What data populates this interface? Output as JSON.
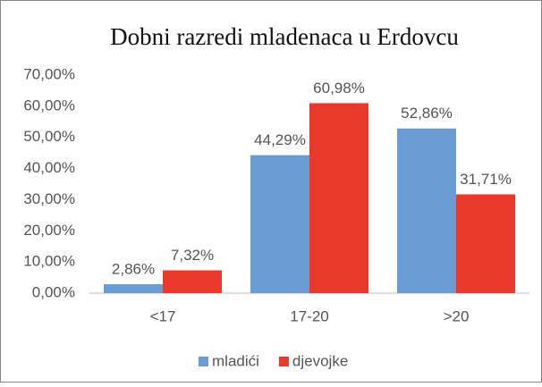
{
  "chart_data": {
    "type": "bar",
    "title": "Dobni razredi mladenaca u Erdovcu",
    "categories": [
      "<17",
      "17-20",
      ">20"
    ],
    "series": [
      {
        "name": "mladići",
        "color": "#6a9bd2",
        "values": [
          2.86,
          44.29,
          52.86
        ],
        "value_labels": [
          "2,86%",
          "44,29%",
          "52,86%"
        ]
      },
      {
        "name": "djevojke",
        "color": "#e8392a",
        "values": [
          7.32,
          60.98,
          31.71
        ],
        "value_labels": [
          "7,32%",
          "60,98%",
          "31,71%"
        ]
      }
    ],
    "ylim": [
      0,
      70
    ],
    "yticks": [
      {
        "value": 0,
        "label": "0,00%"
      },
      {
        "value": 10,
        "label": "10,00%"
      },
      {
        "value": 20,
        "label": "20,00%"
      },
      {
        "value": 30,
        "label": "30,00%"
      },
      {
        "value": 40,
        "label": "40,00%"
      },
      {
        "value": 50,
        "label": "50,00%"
      },
      {
        "value": 60,
        "label": "60,00%"
      },
      {
        "value": 70,
        "label": "70,00%"
      }
    ],
    "grid": false,
    "legend": "bottom"
  }
}
